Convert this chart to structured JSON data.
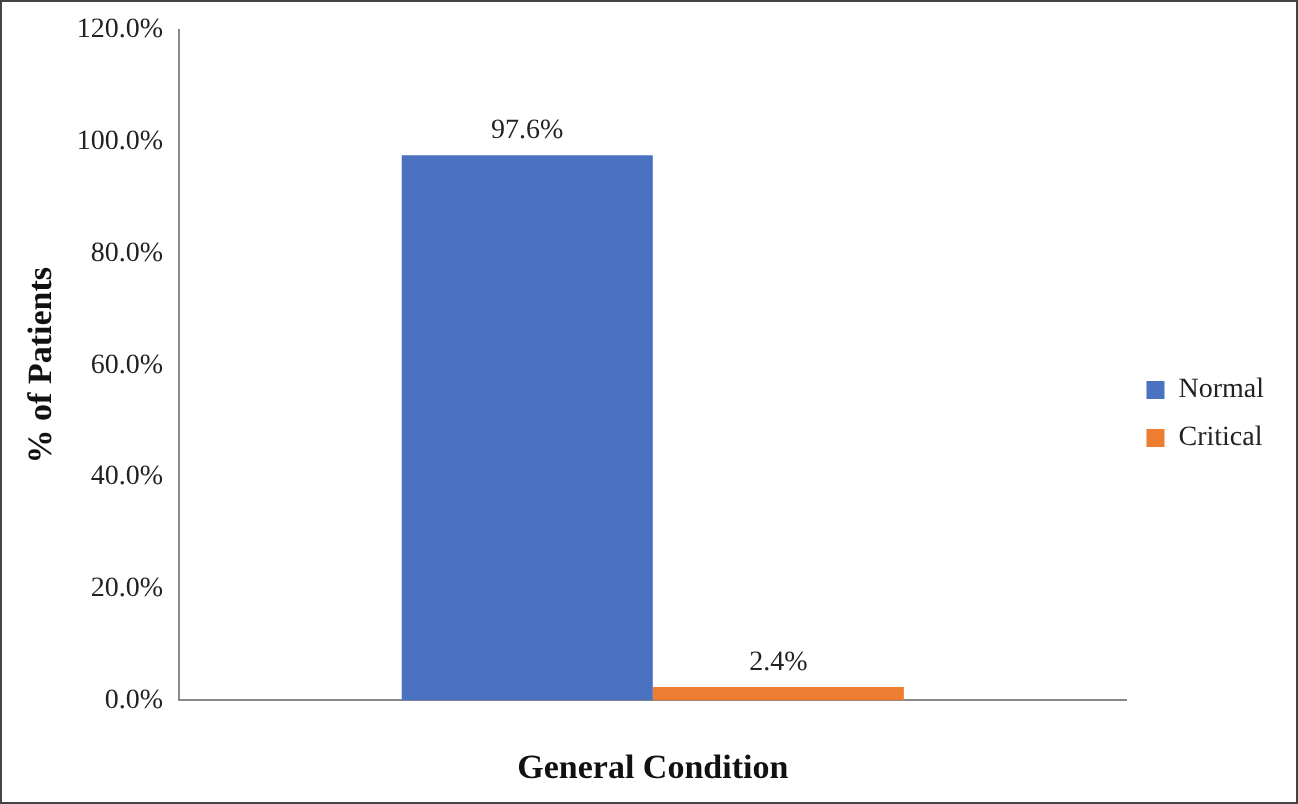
{
  "chart_data": {
    "type": "bar",
    "xlabel": "General Condition",
    "ylabel": "% of Patients",
    "categories": [
      null
    ],
    "series": [
      {
        "name": "Normal",
        "color": "#4a72c0",
        "values": [
          97.6
        ],
        "value_labels": [
          "97.6%"
        ]
      },
      {
        "name": "Critical",
        "color": "#ed7d31",
        "values": [
          2.4
        ],
        "value_labels": [
          "2.4%"
        ]
      }
    ],
    "ylim": [
      0,
      120
    ],
    "yticks": [
      {
        "value": 0,
        "label": "0.0%"
      },
      {
        "value": 20,
        "label": "20.0%"
      },
      {
        "value": 40,
        "label": "40.0%"
      },
      {
        "value": 60,
        "label": "60.0%"
      },
      {
        "value": 80,
        "label": "80.0%"
      },
      {
        "value": 100,
        "label": "100.0%"
      },
      {
        "value": 120,
        "label": "120.0%"
      }
    ],
    "grid": false,
    "legend": "right"
  }
}
